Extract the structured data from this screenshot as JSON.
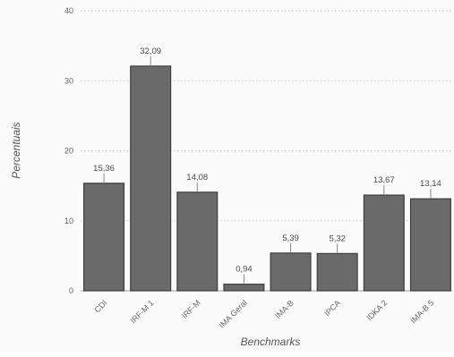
{
  "chart_data": {
    "type": "bar",
    "title": "",
    "xlabel": "Benchmarks",
    "ylabel": "Percentuais",
    "categories": [
      "CDI",
      "IRF-M 1",
      "IRF-M",
      "IMA Geral",
      "IMA-B",
      "IPCA",
      "IDKA 2",
      "IMA-B 5"
    ],
    "values": [
      15.36,
      32.09,
      14.08,
      0.94,
      5.39,
      5.32,
      13.67,
      13.14
    ],
    "value_labels": [
      "15,36",
      "32,09",
      "14,08",
      "0,94",
      "5,39",
      "5,32",
      "13,67",
      "13,14"
    ],
    "ylim": [
      0,
      40
    ],
    "yticks": [
      0,
      10,
      20,
      30,
      40
    ],
    "ytick_labels": [
      "0",
      "10",
      "20",
      "30",
      "40"
    ],
    "grid": true,
    "colors": {
      "bar": "#6a6a6a",
      "bar_edge": "#3e3e3e",
      "grid": "#c8c8c8",
      "axis": "#9a9a9a",
      "text": "#555555"
    }
  }
}
